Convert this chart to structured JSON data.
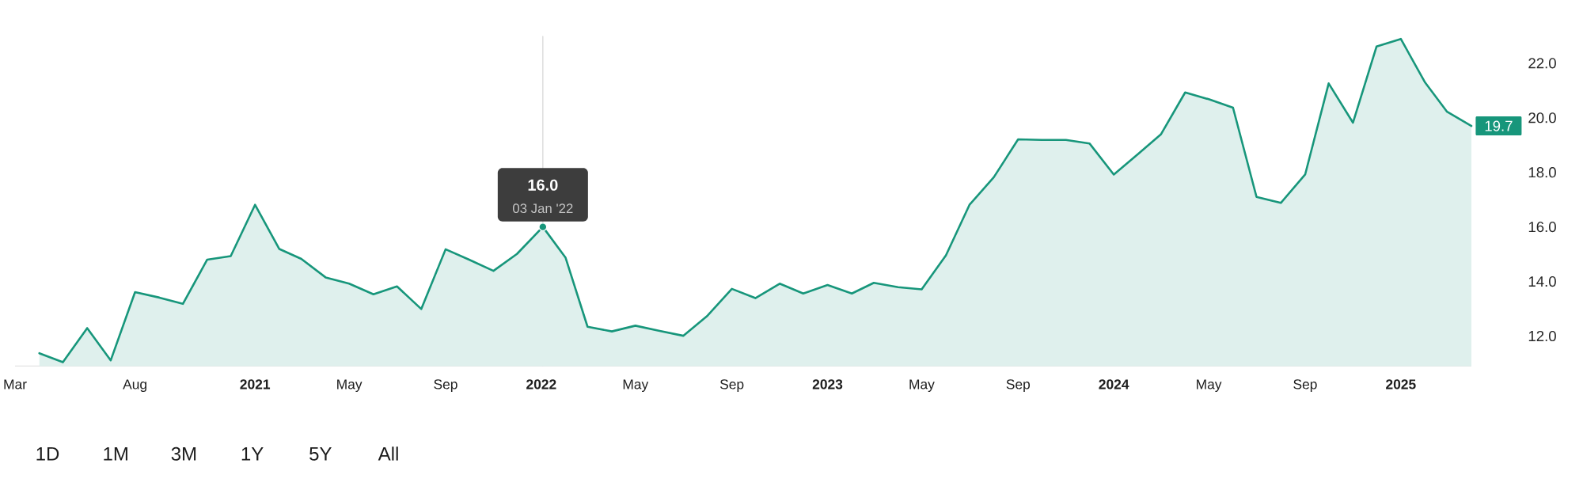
{
  "chart_data": {
    "type": "area",
    "color": "#17967b",
    "x": [
      "2020-04-01",
      "2020-05-01",
      "2020-06-01",
      "2020-07-01",
      "2020-08-01",
      "2020-09-01",
      "2020-10-01",
      "2020-11-01",
      "2020-12-01",
      "2021-01-01",
      "2021-02-01",
      "2021-03-01",
      "2021-04-01",
      "2021-05-01",
      "2021-06-01",
      "2021-07-01",
      "2021-08-01",
      "2021-09-01",
      "2021-10-01",
      "2021-11-01",
      "2021-12-01",
      "2022-01-03",
      "2022-02-01",
      "2022-03-01",
      "2022-04-01",
      "2022-05-01",
      "2022-06-01",
      "2022-07-01",
      "2022-08-01",
      "2022-09-01",
      "2022-10-01",
      "2022-11-01",
      "2022-12-01",
      "2023-01-01",
      "2023-02-01",
      "2023-03-01",
      "2023-04-01",
      "2023-05-01",
      "2023-06-01",
      "2023-07-01",
      "2023-08-01",
      "2023-09-01",
      "2023-10-01",
      "2023-11-01",
      "2023-12-01",
      "2024-01-01",
      "2024-02-01",
      "2024-03-01",
      "2024-04-01",
      "2024-05-01",
      "2024-06-01",
      "2024-07-01",
      "2024-08-01",
      "2024-09-01",
      "2024-10-01",
      "2024-11-01",
      "2024-12-01",
      "2025-01-01",
      "2025-02-01",
      "2025-03-01",
      "2025-04-01"
    ],
    "values": [
      11.37,
      11.04,
      12.29,
      11.11,
      13.61,
      13.41,
      13.18,
      14.8,
      14.93,
      16.81,
      15.19,
      14.83,
      14.15,
      13.92,
      13.53,
      13.82,
      12.99,
      15.18,
      14.8,
      14.39,
      15.01,
      16.0,
      14.87,
      12.34,
      12.17,
      12.38,
      12.19,
      12.01,
      12.75,
      13.73,
      13.39,
      13.92,
      13.56,
      13.87,
      13.56,
      13.95,
      13.79,
      13.71,
      14.96,
      16.81,
      17.82,
      19.21,
      19.19,
      19.19,
      19.06,
      17.92,
      18.67,
      19.39,
      20.93,
      20.68,
      20.37,
      17.1,
      16.88,
      17.92,
      21.26,
      19.82,
      22.61,
      22.89,
      21.29,
      20.22,
      19.7
    ],
    "xlim": [
      "2020-03-01",
      "2025-04-01"
    ],
    "ylim": [
      10.9,
      23.0
    ],
    "xticks": [
      {
        "value": "2020-03-01",
        "label": "Mar"
      },
      {
        "value": "2020-08-01",
        "label": "Aug"
      },
      {
        "value": "2021-01-01",
        "label": "2021"
      },
      {
        "value": "2021-05-01",
        "label": "May"
      },
      {
        "value": "2021-09-01",
        "label": "Sep"
      },
      {
        "value": "2022-01-01",
        "label": "2022"
      },
      {
        "value": "2022-05-01",
        "label": "May"
      },
      {
        "value": "2022-09-01",
        "label": "Sep"
      },
      {
        "value": "2023-01-01",
        "label": "2023"
      },
      {
        "value": "2023-05-01",
        "label": "May"
      },
      {
        "value": "2023-09-01",
        "label": "Sep"
      },
      {
        "value": "2024-01-01",
        "label": "2024"
      },
      {
        "value": "2024-05-01",
        "label": "May"
      },
      {
        "value": "2024-09-01",
        "label": "Sep"
      },
      {
        "value": "2025-01-01",
        "label": "2025"
      }
    ],
    "yticks": [
      {
        "value": 12,
        "label": "12.0"
      },
      {
        "value": 14,
        "label": "14.0"
      },
      {
        "value": 16,
        "label": "16.0"
      },
      {
        "value": 18,
        "label": "18.0"
      },
      {
        "value": 20,
        "label": "20.0"
      },
      {
        "value": 22,
        "label": "22.0"
      }
    ],
    "ref_lines": [
      {
        "axis": "x",
        "value": "2022-01-03",
        "color": "#d4d4d4"
      }
    ],
    "annotations": [
      {
        "text": "16.0",
        "x": "2022-01-03",
        "y": 16.0
      },
      {
        "text": "03 Jan '22",
        "x": "2022-01-03",
        "y": 16.0
      },
      {
        "text": "19.7",
        "x": "2025-04-01",
        "y": 19.7
      },
      "1D",
      "1M",
      "3M",
      "1Y",
      "5Y",
      "All"
    ]
  }
}
